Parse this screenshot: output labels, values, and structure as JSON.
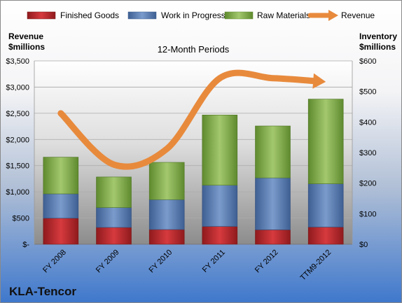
{
  "chart_data": {
    "type": "bar",
    "subtitle": "12-Month Periods",
    "company": "KLA-Tencor",
    "categories": [
      "FY 2008",
      "FY 2009",
      "FY 2010",
      "FY 2011",
      "FY 2012",
      "TTM9-2012"
    ],
    "series": [
      {
        "name": "Finished Goods",
        "axis": "right",
        "color": "#c0262b",
        "values": [
          85,
          55,
          48,
          58,
          47,
          56
        ]
      },
      {
        "name": "Work in Progress",
        "axis": "right",
        "color": "#5f82b6",
        "values": [
          80,
          65,
          98,
          135,
          170,
          142
        ]
      },
      {
        "name": "Raw Materials",
        "axis": "right",
        "color": "#8ab155",
        "values": [
          120,
          100,
          122,
          230,
          170,
          277
        ]
      },
      {
        "name": "Revenue",
        "axis": "left",
        "type": "line",
        "color": "#e88a3c",
        "values": [
          2500,
          1520,
          1820,
          3170,
          3170,
          3100
        ]
      }
    ],
    "left_axis": {
      "label_line1": "Revenue",
      "label_line2": "$millions",
      "range": [
        0,
        3500
      ],
      "ticks": [
        {
          "value": 0,
          "label": "$-"
        },
        {
          "value": 500,
          "label": "$500"
        },
        {
          "value": 1000,
          "label": "$1,000"
        },
        {
          "value": 1500,
          "label": "$1,500"
        },
        {
          "value": 2000,
          "label": "$2,000"
        },
        {
          "value": 2500,
          "label": "$2,500"
        },
        {
          "value": 3000,
          "label": "$3,000"
        },
        {
          "value": 3500,
          "label": "$3,500"
        }
      ]
    },
    "right_axis": {
      "label_line1": "Inventory",
      "label_line2": "$millions",
      "range": [
        0,
        600
      ],
      "ticks": [
        {
          "value": 0,
          "label": "$0"
        },
        {
          "value": 100,
          "label": "$100"
        },
        {
          "value": 200,
          "label": "$200"
        },
        {
          "value": 300,
          "label": "$300"
        },
        {
          "value": 400,
          "label": "$400"
        },
        {
          "value": 500,
          "label": "$500"
        },
        {
          "value": 600,
          "label": "$600"
        }
      ]
    },
    "grid": true,
    "legend_position": "top"
  }
}
